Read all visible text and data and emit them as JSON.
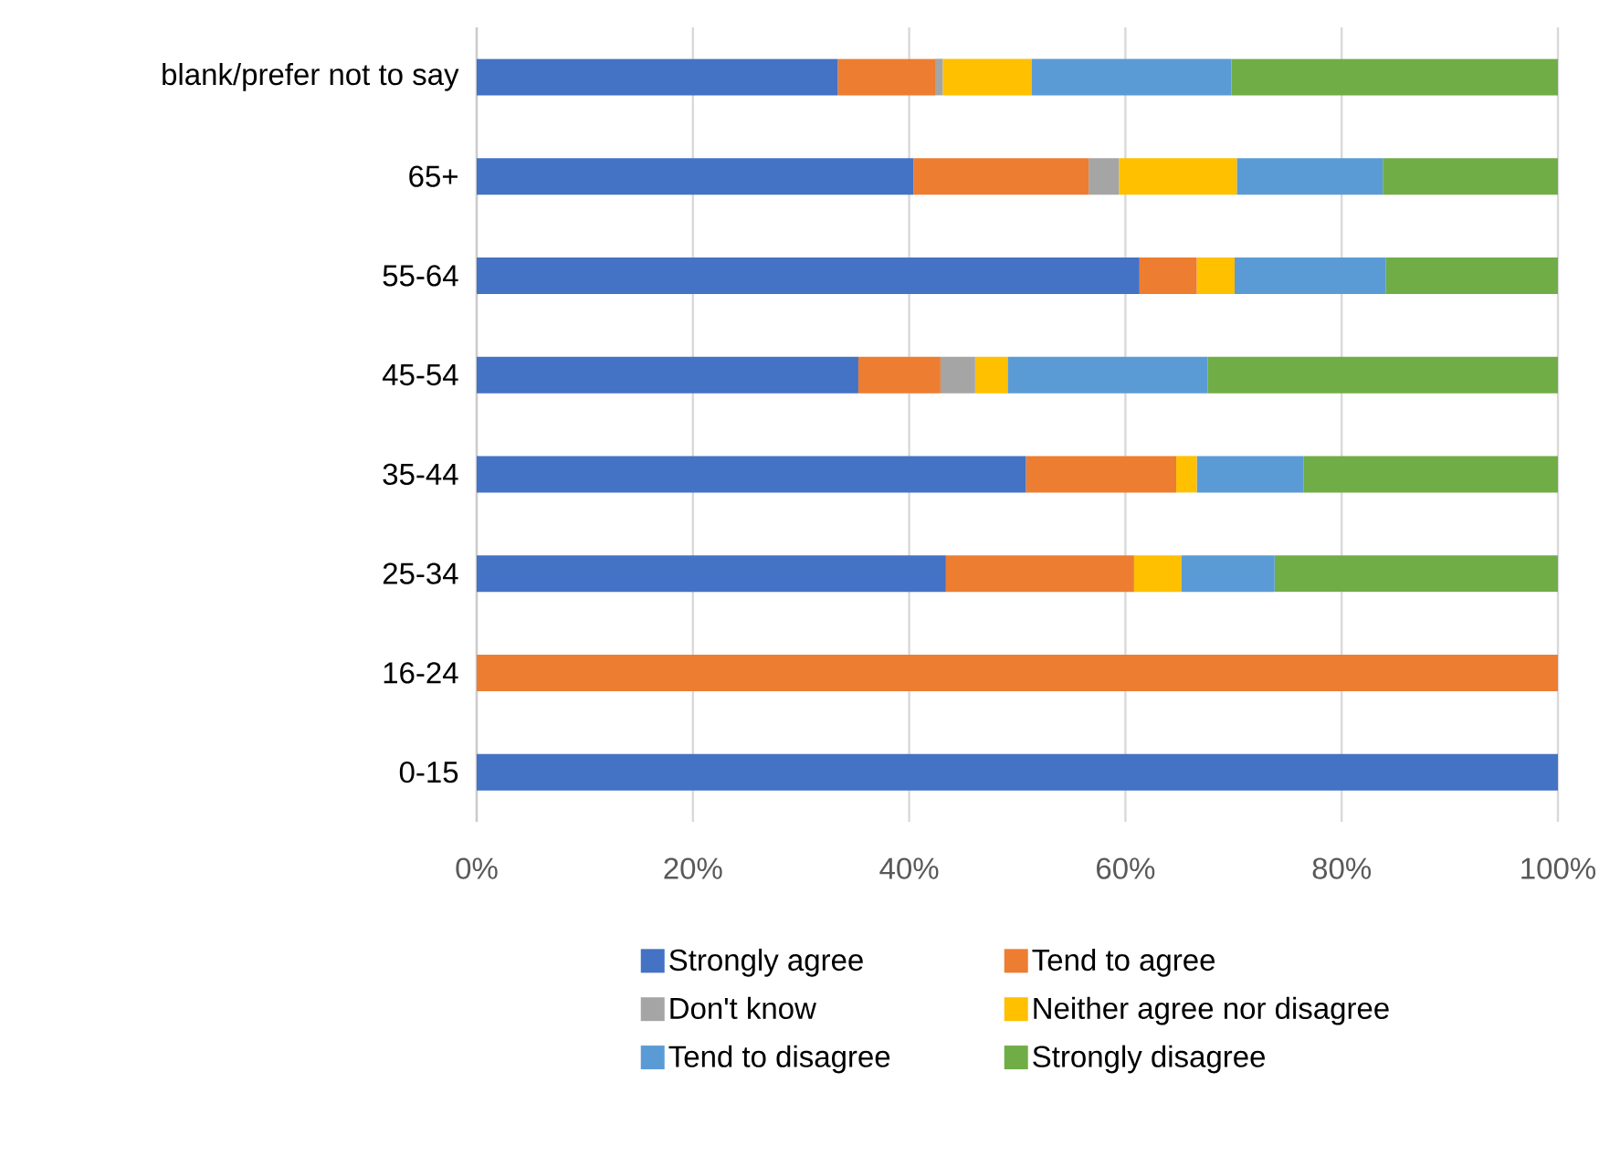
{
  "chart_data": {
    "type": "bar",
    "orientation": "horizontal",
    "stacked": true,
    "categories": [
      "blank/prefer not to say",
      "65+",
      "55-64",
      "45-54",
      "35-44",
      "25-34",
      "16-24",
      "0-15"
    ],
    "series": [
      {
        "name": "Strongly agree",
        "color": "#4472c4",
        "values": [
          33.4,
          40.4,
          61.3,
          35.3,
          50.8,
          43.4,
          0,
          100
        ]
      },
      {
        "name": "Tend to agree",
        "color": "#ed7d31",
        "values": [
          9.0,
          16.2,
          5.3,
          7.6,
          13.9,
          17.4,
          100,
          0
        ]
      },
      {
        "name": "Don't know",
        "color": "#a5a5a5",
        "values": [
          0.7,
          2.8,
          0,
          3.2,
          0,
          0,
          0,
          0
        ]
      },
      {
        "name": "Neither agree nor disagree",
        "color": "#ffc000",
        "values": [
          8.2,
          10.9,
          3.5,
          3.0,
          1.9,
          4.4,
          0,
          0
        ]
      },
      {
        "name": "Tend to disagree",
        "color": "#5b9bd5",
        "values": [
          18.5,
          13.5,
          14.0,
          18.5,
          9.9,
          8.6,
          0,
          0
        ]
      },
      {
        "name": "Strongly disagree",
        "color": "#70ad47",
        "values": [
          30.2,
          16.2,
          15.9,
          32.4,
          23.5,
          26.2,
          0,
          0
        ]
      }
    ],
    "xlim": [
      0,
      100
    ],
    "xticks": [
      {
        "value": 0,
        "label": "0%"
      },
      {
        "value": 20,
        "label": "20%"
      },
      {
        "value": 40,
        "label": "40%"
      },
      {
        "value": 60,
        "label": "60%"
      },
      {
        "value": 80,
        "label": "80%"
      },
      {
        "value": 100,
        "label": "100%"
      }
    ],
    "grid": "x",
    "legend": "bottom"
  }
}
